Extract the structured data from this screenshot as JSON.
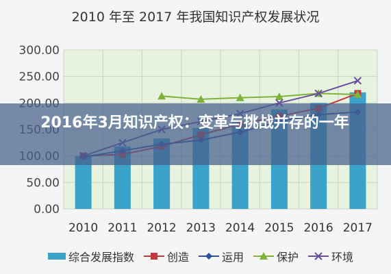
{
  "overlay_caption": "2016年3月知识产权：变革与挑战并存的一年",
  "colors": {
    "bar": "#3ba3c9",
    "plot_bg": "#e7f2df",
    "grid": "#c9d3c6",
    "s_chuangzao": "#c0393b",
    "s_yunyong": "#2c4f9e",
    "s_baohu": "#7fb23a",
    "s_huanjing": "#6a4e9e"
  },
  "chart_data": {
    "type": "bar",
    "title": "2010 年至 2017 年我国知识产权发展状况",
    "categories": [
      "2010",
      "2011",
      "2012",
      "2013",
      "2014",
      "2015",
      "2016",
      "2017"
    ],
    "ylim": [
      0,
      300
    ],
    "yticks": [
      "0.00",
      "50.00",
      "100.00",
      "150.00",
      "200.00",
      "250.00",
      "300.00"
    ],
    "grid": true,
    "legend_position": "bottom",
    "bar_series": {
      "name": "综合发展指数",
      "values": [
        100,
        118,
        133,
        153,
        165,
        188,
        200,
        220
      ]
    },
    "line_series": [
      {
        "name": "创造",
        "marker": "square",
        "values": [
          100,
          103,
          118,
          140,
          160,
          175,
          190,
          218
        ]
      },
      {
        "name": "运用",
        "marker": "diamond",
        "values": [
          98,
          110,
          122,
          130,
          145,
          165,
          178,
          183
        ]
      },
      {
        "name": "保护",
        "marker": "triangle",
        "values": [
          null,
          null,
          213,
          207,
          210,
          212,
          218,
          216
        ]
      },
      {
        "name": "环境",
        "marker": "x",
        "values": [
          100,
          125,
          150,
          165,
          180,
          200,
          218,
          242
        ]
      }
    ]
  }
}
